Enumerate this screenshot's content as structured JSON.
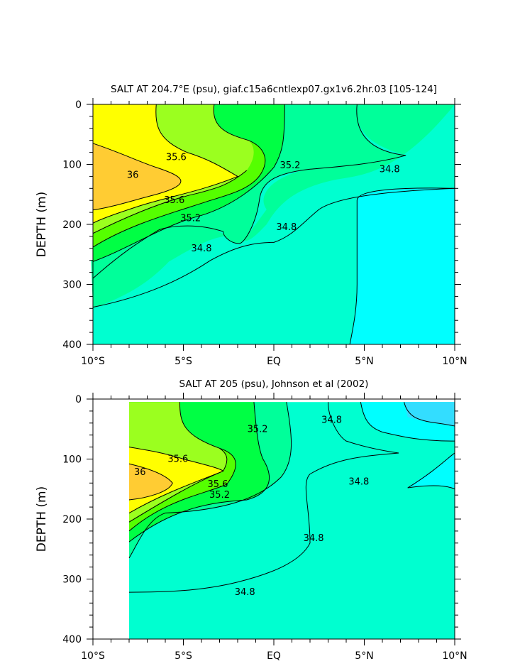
{
  "chart_data": [
    {
      "type": "contour",
      "title": "SALT AT 204.7°E (psu), giaf.c15a6cntlexp07.gx1v6.2hr.03 [105-124]",
      "xlabel": "",
      "ylabel": "DEPTH (m)",
      "xlim": [
        -10,
        10
      ],
      "ylim": [
        400,
        0
      ],
      "x_ticks": [
        {
          "value": -10,
          "label": "10°S"
        },
        {
          "value": -5,
          "label": "5°S"
        },
        {
          "value": 0,
          "label": "EQ"
        },
        {
          "value": 5,
          "label": "5°N"
        },
        {
          "value": 10,
          "label": "10°N"
        }
      ],
      "y_ticks": [
        {
          "value": 0,
          "label": "0"
        },
        {
          "value": 100,
          "label": "100"
        },
        {
          "value": 200,
          "label": "200"
        },
        {
          "value": 300,
          "label": "300"
        },
        {
          "value": 400,
          "label": "400"
        }
      ],
      "contour_levels": [
        34.6,
        34.8,
        35.0,
        35.2,
        35.4,
        35.6,
        35.8,
        36.0
      ],
      "fill_colors": [
        "#00ffff",
        "#00ffd0",
        "#00ff9a",
        "#00ff44",
        "#55ff00",
        "#9bff1f",
        "#ffff00",
        "#ffcc33"
      ],
      "contour_labels": [
        {
          "text": "36",
          "x": -7.8,
          "y": 118
        },
        {
          "text": "35.6",
          "x": -5.4,
          "y": 88
        },
        {
          "text": "35.6",
          "x": -5.5,
          "y": 160
        },
        {
          "text": "35.2",
          "x": -4.6,
          "y": 190
        },
        {
          "text": "35.2",
          "x": 0.9,
          "y": 102
        },
        {
          "text": "34.8",
          "x": -4.0,
          "y": 240
        },
        {
          "text": "34.8",
          "x": 0.7,
          "y": 205
        },
        {
          "text": "34.8",
          "x": 6.4,
          "y": 108
        }
      ]
    },
    {
      "type": "contour",
      "title": "SALT AT 205 (psu), Johnson et al (2002)",
      "xlabel": "",
      "ylabel": "DEPTH (m)",
      "xlim": [
        -10,
        10
      ],
      "ylim": [
        400,
        0
      ],
      "x_ticks": [
        {
          "value": -10,
          "label": "10°S"
        },
        {
          "value": -5,
          "label": "5°S"
        },
        {
          "value": 0,
          "label": "EQ"
        },
        {
          "value": 5,
          "label": "5°N"
        },
        {
          "value": 10,
          "label": "10°N"
        }
      ],
      "y_ticks": [
        {
          "value": 0,
          "label": "0"
        },
        {
          "value": 100,
          "label": "100"
        },
        {
          "value": 200,
          "label": "200"
        },
        {
          "value": 300,
          "label": "300"
        },
        {
          "value": 400,
          "label": "400"
        }
      ],
      "contour_levels": [
        34.4,
        34.6,
        34.8,
        35.0,
        35.2,
        35.4,
        35.6,
        35.8,
        36.0
      ],
      "fill_colors": [
        "#33ddff",
        "#00ffff",
        "#00ffd0",
        "#00ff9a",
        "#00ff44",
        "#55ff00",
        "#9bff1f",
        "#ffff00",
        "#ffcc33"
      ],
      "contour_labels": [
        {
          "text": "36",
          "x": -7.4,
          "y": 122
        },
        {
          "text": "35.6",
          "x": -5.3,
          "y": 100
        },
        {
          "text": "35.6",
          "x": -3.1,
          "y": 142
        },
        {
          "text": "35.2",
          "x": -3.0,
          "y": 160
        },
        {
          "text": "35.2",
          "x": -0.9,
          "y": 50
        },
        {
          "text": "34.8",
          "x": 3.2,
          "y": 35
        },
        {
          "text": "34.8",
          "x": 4.7,
          "y": 138
        },
        {
          "text": "34.8",
          "x": 2.2,
          "y": 232
        },
        {
          "text": "34.8",
          "x": -1.6,
          "y": 322
        }
      ]
    }
  ]
}
